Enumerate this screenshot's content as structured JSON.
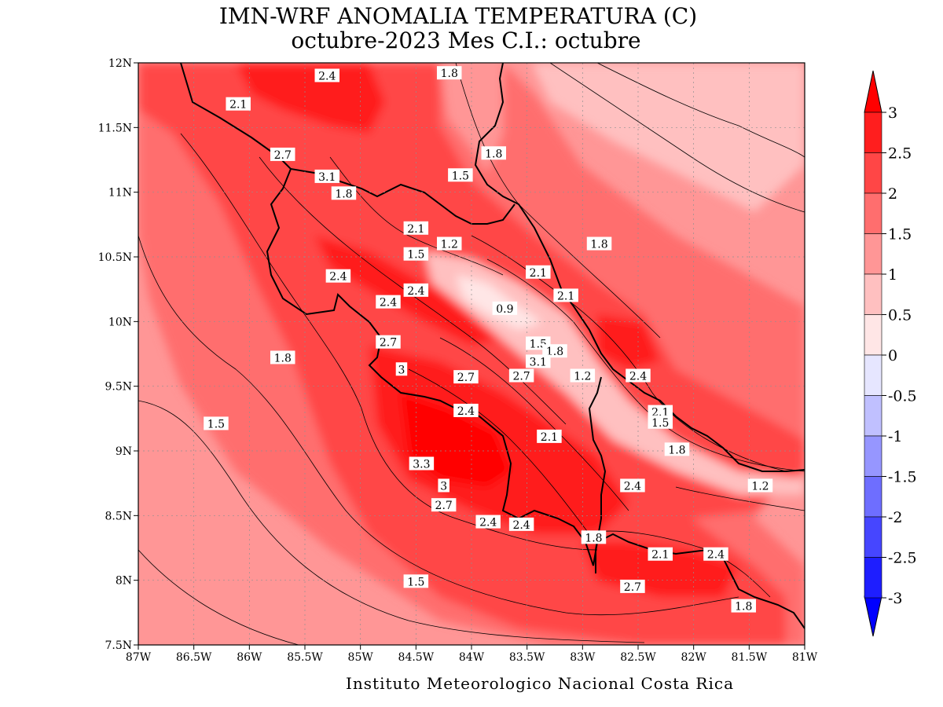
{
  "title": {
    "line1": "IMN-WRF  ANOMALIA TEMPERATURA (C)",
    "line2": "octubre-2023 Mes C.I.: octubre"
  },
  "footer": "Instituto Meteorologico Nacional Costa Rica",
  "axes": {
    "lon_range": [
      -87,
      -81
    ],
    "lat_range": [
      7.5,
      12
    ],
    "x_ticks": [
      "87W",
      "86.5W",
      "86W",
      "85.5W",
      "85W",
      "84.5W",
      "84W",
      "83.5W",
      "83W",
      "82.5W",
      "82W",
      "81.5W",
      "81W"
    ],
    "y_ticks": [
      "12N",
      "11.5N",
      "11N",
      "10.5N",
      "10N",
      "9.5N",
      "9N",
      "8.5N",
      "8N",
      "7.5N"
    ],
    "grid": true
  },
  "colorbar": {
    "labels": [
      "3",
      "2.5",
      "2",
      "1.5",
      "1",
      "0.5",
      "0",
      "-0.5",
      "-1",
      "-1.5",
      "-2",
      "-2.5",
      "-3"
    ],
    "bins": [
      {
        "range": ">3",
        "color": "#ff0000"
      },
      {
        "range": "2.5 to 3",
        "color": "#ff1e1e"
      },
      {
        "range": "2 to 2.5",
        "color": "#ff4646"
      },
      {
        "range": "1.5 to 2",
        "color": "#ff6e6e"
      },
      {
        "range": "1 to 1.5",
        "color": "#ff9696"
      },
      {
        "range": "0.5 to 1",
        "color": "#ffc0c0"
      },
      {
        "range": "0 to 0.5",
        "color": "#ffe6e6"
      },
      {
        "range": "-0.5 to 0",
        "color": "#e6e6ff"
      },
      {
        "range": "-1 to -0.5",
        "color": "#c0c0ff"
      },
      {
        "range": "-1.5 to -1",
        "color": "#9696ff"
      },
      {
        "range": "-2 to -1.5",
        "color": "#6e6eff"
      },
      {
        "range": "-2.5 to -2",
        "color": "#4646ff"
      },
      {
        "range": "-3 to -2.5",
        "color": "#1e1eff"
      },
      {
        "range": "<-3",
        "color": "#0000ff"
      }
    ]
  },
  "contour_labels": [
    {
      "text": "2.4",
      "lon": -85.3,
      "lat": 11.9
    },
    {
      "text": "1.8",
      "lon": -84.2,
      "lat": 11.92
    },
    {
      "text": "2.1",
      "lon": -86.1,
      "lat": 11.68
    },
    {
      "text": "2.7",
      "lon": -85.7,
      "lat": 11.29
    },
    {
      "text": "1.8",
      "lon": -83.8,
      "lat": 11.3
    },
    {
      "text": "1.5",
      "lon": -84.1,
      "lat": 11.13
    },
    {
      "text": "3.1",
      "lon": -85.3,
      "lat": 11.12
    },
    {
      "text": "1.8",
      "lon": -85.15,
      "lat": 10.99
    },
    {
      "text": "2.1",
      "lon": -84.5,
      "lat": 10.72
    },
    {
      "text": "1.2",
      "lon": -84.2,
      "lat": 10.6
    },
    {
      "text": "1.5",
      "lon": -84.5,
      "lat": 10.52
    },
    {
      "text": "1.8",
      "lon": -82.85,
      "lat": 10.6
    },
    {
      "text": "2.1",
      "lon": -83.4,
      "lat": 10.38
    },
    {
      "text": "2.4",
      "lon": -85.2,
      "lat": 10.35
    },
    {
      "text": "2.4",
      "lon": -84.5,
      "lat": 10.24
    },
    {
      "text": "2.1",
      "lon": -83.15,
      "lat": 10.2
    },
    {
      "text": "2.4",
      "lon": -84.75,
      "lat": 10.15
    },
    {
      "text": "0.9",
      "lon": -83.7,
      "lat": 10.1
    },
    {
      "text": "2.7",
      "lon": -84.75,
      "lat": 9.84
    },
    {
      "text": "1.5",
      "lon": -83.4,
      "lat": 9.83
    },
    {
      "text": "1.8",
      "lon": -83.25,
      "lat": 9.77
    },
    {
      "text": "1.8",
      "lon": -85.7,
      "lat": 9.72
    },
    {
      "text": "3.1",
      "lon": -83.4,
      "lat": 9.69
    },
    {
      "text": "3",
      "lon": -84.63,
      "lat": 9.63
    },
    {
      "text": "2.7",
      "lon": -84.05,
      "lat": 9.57
    },
    {
      "text": "2.7",
      "lon": -83.55,
      "lat": 9.58
    },
    {
      "text": "1.2",
      "lon": -83.0,
      "lat": 9.58
    },
    {
      "text": "2.4",
      "lon": -82.5,
      "lat": 9.58
    },
    {
      "text": "2.4",
      "lon": -84.05,
      "lat": 9.31
    },
    {
      "text": "2.1",
      "lon": -82.3,
      "lat": 9.3
    },
    {
      "text": "1.5",
      "lon": -82.3,
      "lat": 9.22
    },
    {
      "text": "1.5",
      "lon": -86.3,
      "lat": 9.21
    },
    {
      "text": "2.1",
      "lon": -83.3,
      "lat": 9.11
    },
    {
      "text": "1.8",
      "lon": -82.15,
      "lat": 9.01
    },
    {
      "text": "3.3",
      "lon": -84.45,
      "lat": 8.9
    },
    {
      "text": "3",
      "lon": -84.25,
      "lat": 8.73
    },
    {
      "text": "2.4",
      "lon": -82.55,
      "lat": 8.73
    },
    {
      "text": "1.2",
      "lon": -81.4,
      "lat": 8.73
    },
    {
      "text": "2.7",
      "lon": -84.25,
      "lat": 8.58
    },
    {
      "text": "2.4",
      "lon": -83.85,
      "lat": 8.45
    },
    {
      "text": "2.4",
      "lon": -83.55,
      "lat": 8.43
    },
    {
      "text": "1.8",
      "lon": -82.9,
      "lat": 8.33
    },
    {
      "text": "2.1",
      "lon": -82.3,
      "lat": 8.2
    },
    {
      "text": "2.4",
      "lon": -81.8,
      "lat": 8.2
    },
    {
      "text": "1.5",
      "lon": -84.5,
      "lat": 7.99
    },
    {
      "text": "2.7",
      "lon": -82.55,
      "lat": 7.95
    },
    {
      "text": "1.8",
      "lon": -81.55,
      "lat": 7.8
    }
  ]
}
